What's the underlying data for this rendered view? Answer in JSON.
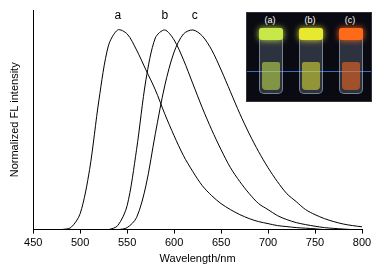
{
  "chart_data": {
    "type": "line",
    "x_label": "Wavelength/nm",
    "y_label": "Normalized FL intensity",
    "x": [
      480,
      490,
      500,
      510,
      520,
      530,
      540,
      550,
      560,
      570,
      580,
      590,
      600,
      610,
      620,
      630,
      640,
      650,
      660,
      670,
      680,
      690,
      700,
      710,
      720,
      730,
      740,
      750,
      760,
      770,
      780,
      790,
      800
    ],
    "series": [
      {
        "name": "a",
        "color": "#000000",
        "values": [
          0,
          0.01,
          0.08,
          0.3,
          0.65,
          0.92,
          1.0,
          0.98,
          0.9,
          0.8,
          0.7,
          0.58,
          0.47,
          0.37,
          0.29,
          0.22,
          0.17,
          0.13,
          0.1,
          0.075,
          0.055,
          0.04,
          0.03,
          0.02,
          0.015,
          0.01,
          0.007,
          0.004,
          0,
          0,
          0,
          0,
          0
        ]
      },
      {
        "name": "b",
        "color": "#000000",
        "values": [
          0,
          0,
          0,
          0,
          0,
          0,
          0.02,
          0.12,
          0.4,
          0.75,
          0.96,
          1.0,
          0.95,
          0.85,
          0.73,
          0.61,
          0.5,
          0.4,
          0.31,
          0.24,
          0.18,
          0.13,
          0.1,
          0.07,
          0.05,
          0.035,
          0.025,
          0.017,
          0.01,
          0.006,
          0.003,
          0,
          0
        ]
      },
      {
        "name": "c",
        "color": "#000000",
        "values": [
          0,
          0,
          0,
          0,
          0,
          0,
          0,
          0.01,
          0.06,
          0.22,
          0.48,
          0.72,
          0.89,
          0.98,
          1.0,
          0.97,
          0.9,
          0.8,
          0.69,
          0.58,
          0.48,
          0.39,
          0.31,
          0.24,
          0.18,
          0.14,
          0.1,
          0.075,
          0.055,
          0.04,
          0.028,
          0.02,
          0.014
        ]
      }
    ],
    "annotations": [
      {
        "text": "a",
        "x": 540,
        "y": 1.04
      },
      {
        "text": "b",
        "x": 590,
        "y": 1.04
      },
      {
        "text": "c",
        "x": 622,
        "y": 1.04
      }
    ],
    "xlim": [
      450,
      800
    ],
    "xticks": [
      450,
      500,
      550,
      600,
      650,
      700,
      750,
      800
    ],
    "ylim": [
      0,
      1.1
    ],
    "tick_labels": "x",
    "grid": false,
    "inset": {
      "labels": [
        "(a)",
        "(b)",
        "(c)"
      ],
      "colors": [
        "#c8e84a",
        "#e6e832",
        "#ff6a1a"
      ]
    }
  }
}
